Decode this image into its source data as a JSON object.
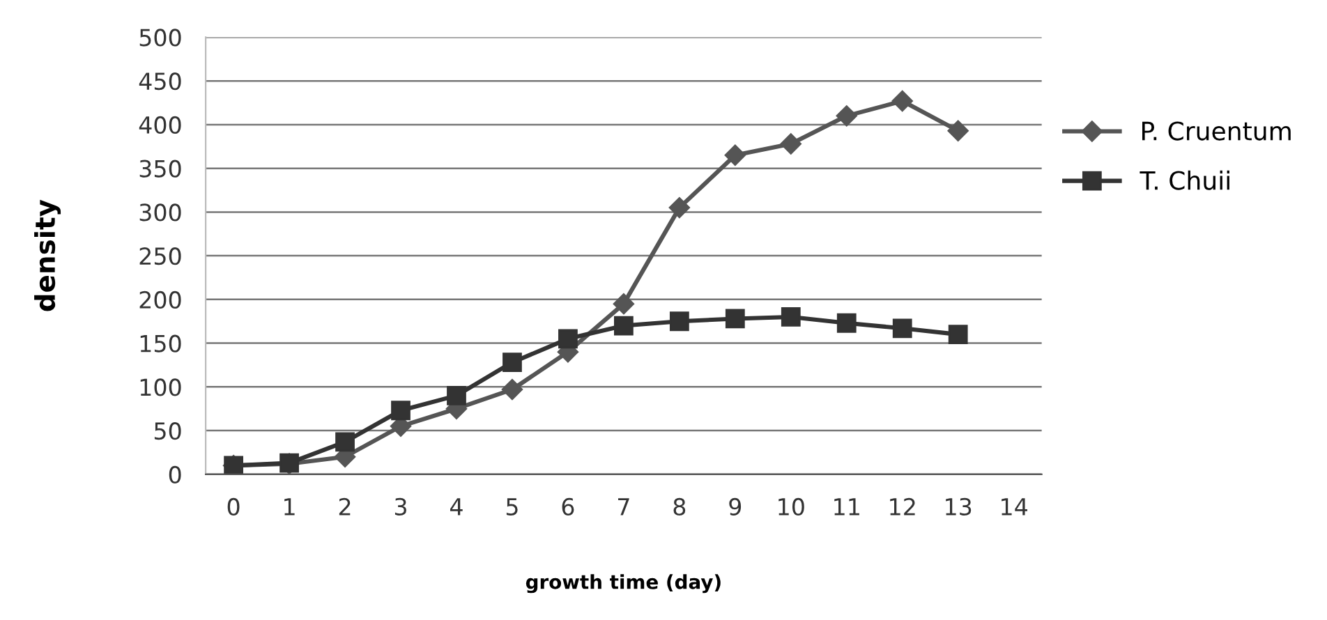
{
  "chart_data": {
    "type": "line",
    "xlabel": "growth time (day)",
    "ylabel": "density",
    "categories": [
      "0",
      "1",
      "2",
      "3",
      "4",
      "5",
      "6",
      "7",
      "8",
      "9",
      "10",
      "11",
      "12",
      "13",
      "14"
    ],
    "series": [
      {
        "name": "P. Cruentum",
        "color": "#555555",
        "marker": "diamond",
        "values": [
          10,
          12,
          20,
          55,
          75,
          97,
          140,
          195,
          305,
          365,
          378,
          410,
          427,
          393,
          null
        ]
      },
      {
        "name": "T. Chuii",
        "color": "#333333",
        "marker": "square",
        "values": [
          10,
          13,
          37,
          73,
          90,
          128,
          155,
          170,
          175,
          178,
          180,
          173,
          167,
          160,
          null
        ]
      }
    ],
    "ylim": [
      0,
      500
    ],
    "yticks": [
      0,
      50,
      100,
      150,
      200,
      250,
      300,
      350,
      400,
      450,
      500
    ],
    "grid": "y",
    "legend": "right",
    "line_style": "solid"
  }
}
